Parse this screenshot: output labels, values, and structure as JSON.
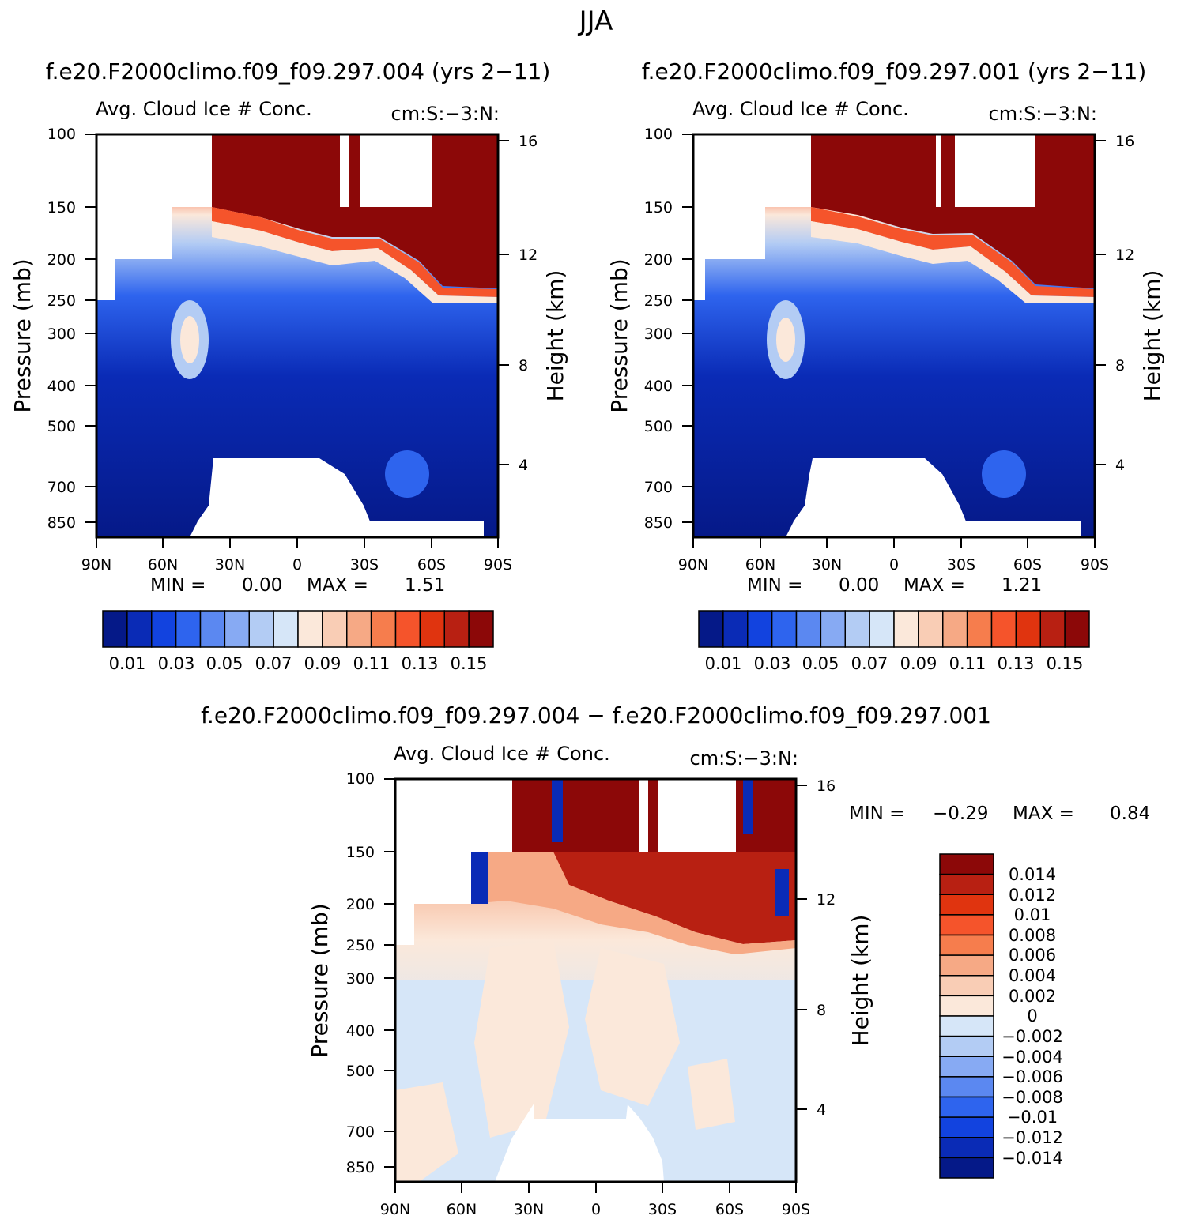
{
  "figure_title": "JJA",
  "colors": {
    "levels_pos": [
      "#fbe8da",
      "#f9cdb5",
      "#f6a985",
      "#f67d4d",
      "#f5542b",
      "#e0340f",
      "#b82012",
      "#8c0808"
    ],
    "levels_neg": [
      "#d6e6f8",
      "#b3ccf4",
      "#87aaf3",
      "#5b88f1",
      "#2e64ee",
      "#1243df",
      "#0a2bb6",
      "#051988"
    ],
    "missing": "#ffffff"
  },
  "chart_data": [
    {
      "type": "heatmap",
      "panel": "top-left",
      "case_title": "f.e20.F2000climo.f09_f09.297.004 (yrs 2−11)",
      "title": "Avg. Cloud Ice # Conc.",
      "units": "cm:S:−3:N:",
      "xlabel": "",
      "ylabel": "Pressure (mb)",
      "y2label": "Height (km)",
      "x_ticks": [
        "90N",
        "60N",
        "30N",
        "0",
        "30S",
        "60S",
        "90S"
      ],
      "y_ticks": [
        "100",
        "150",
        "200",
        "250",
        "300",
        "400",
        "500",
        "700",
        "850"
      ],
      "y2_ticks": [
        "16",
        "12",
        "8",
        "4"
      ],
      "min_label": "MIN =",
      "min_value": "0.00",
      "max_label": "MAX =",
      "max_value": "1.51",
      "colorbar": {
        "orientation": "horizontal",
        "labels": [
          "0.01",
          "0.03",
          "0.05",
          "0.07",
          "0.09",
          "0.11",
          "0.13",
          "0.15"
        ]
      }
    },
    {
      "type": "heatmap",
      "panel": "top-right",
      "case_title": "f.e20.F2000climo.f09_f09.297.001 (yrs 2−11)",
      "title": "Avg. Cloud Ice # Conc.",
      "units": "cm:S:−3:N:",
      "xlabel": "",
      "ylabel": "Pressure (mb)",
      "y2label": "Height (km)",
      "x_ticks": [
        "90N",
        "60N",
        "30N",
        "0",
        "30S",
        "60S",
        "90S"
      ],
      "y_ticks": [
        "100",
        "150",
        "200",
        "250",
        "300",
        "400",
        "500",
        "700",
        "850"
      ],
      "y2_ticks": [
        "16",
        "12",
        "8",
        "4"
      ],
      "min_label": "MIN =",
      "min_value": "0.00",
      "max_label": "MAX =",
      "max_value": "1.21",
      "colorbar": {
        "orientation": "horizontal",
        "labels": [
          "0.01",
          "0.03",
          "0.05",
          "0.07",
          "0.09",
          "0.11",
          "0.13",
          "0.15"
        ]
      }
    },
    {
      "type": "heatmap",
      "panel": "bottom",
      "case_title": "f.e20.F2000climo.f09_f09.297.004 − f.e20.F2000climo.f09_f09.297.001",
      "title": "Avg. Cloud Ice # Conc.",
      "units": "cm:S:−3:N:",
      "xlabel": "",
      "ylabel": "Pressure (mb)",
      "y2label": "Height (km)",
      "x_ticks": [
        "90N",
        "60N",
        "30N",
        "0",
        "30S",
        "60S",
        "90S"
      ],
      "y_ticks": [
        "100",
        "150",
        "200",
        "250",
        "300",
        "400",
        "500",
        "700",
        "850"
      ],
      "y2_ticks": [
        "16",
        "12",
        "8",
        "4"
      ],
      "min_label": "MIN =",
      "min_value": "−0.29",
      "max_label": "MAX =",
      "max_value": "0.84",
      "colorbar": {
        "orientation": "vertical",
        "labels": [
          "0.014",
          "0.012",
          "0.01",
          "0.008",
          "0.006",
          "0.004",
          "0.002",
          "0",
          "−0.002",
          "−0.004",
          "−0.006",
          "−0.008",
          "−0.01",
          "−0.012",
          "−0.014"
        ]
      }
    }
  ]
}
